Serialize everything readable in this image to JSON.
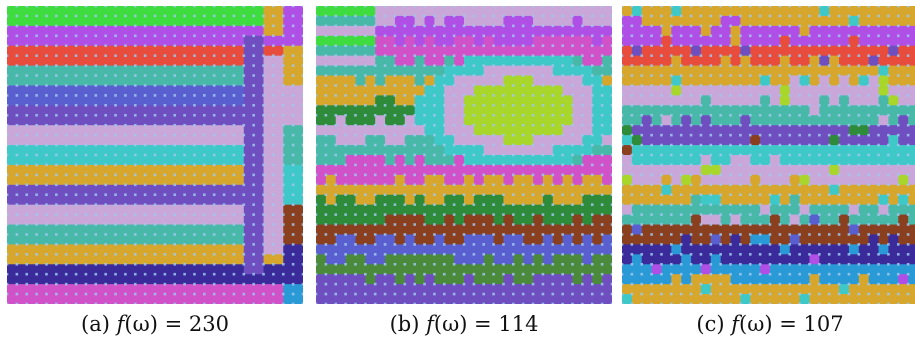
{
  "colors": {
    "background": "#ffffff",
    "grid_node": "#9fc7ee",
    "palette": [
      "#3fdc3f",
      "#b04fe6",
      "#e74c3c",
      "#48b9a8",
      "#d6a72c",
      "#6f4fc0",
      "#c9a7d8",
      "#3fc8c8",
      "#2e8b3a",
      "#a8d62a",
      "#8a3f1e",
      "#3a2a9a",
      "#d152c8",
      "#5a5fd0",
      "#2a9ad6",
      "#4b8a3a"
    ]
  },
  "panels": [
    {
      "id": "a",
      "caption_prefix": "(a)",
      "caption_func": "f",
      "caption_arg": "(ω) = ",
      "caption_value": "230",
      "pattern": "nested-stripes"
    },
    {
      "id": "b",
      "caption_prefix": "(b)",
      "caption_func": "f",
      "caption_arg": "(ω) = ",
      "caption_value": "114",
      "pattern": "irregular-regions"
    },
    {
      "id": "c",
      "caption_prefix": "(c)",
      "caption_func": "f",
      "caption_arg": "(ω) = ",
      "caption_value": "107",
      "pattern": "noisy-stripes"
    }
  ]
}
